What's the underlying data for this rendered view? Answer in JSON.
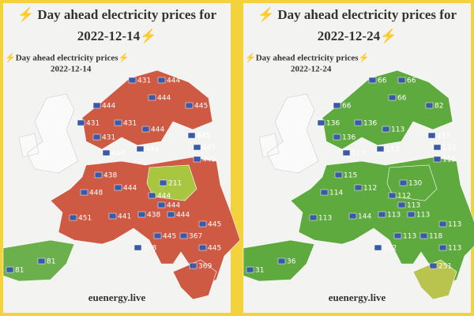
{
  "panels": [
    {
      "title": [
        "⚡ Day ahead electricity prices for",
        "2022-12-14⚡"
      ],
      "subtitle": [
        "⚡Day ahead electricity prices⚡",
        "2022-12-14"
      ],
      "prices": [
        "431",
        "444",
        "444",
        "444",
        "445",
        "431",
        "431",
        "444",
        "445",
        "431",
        "445",
        "444",
        "444",
        "445",
        "438",
        "211",
        "448",
        "444",
        "444",
        "444",
        "451",
        "441",
        "438",
        "444",
        "445",
        "445",
        "367",
        "378",
        "445",
        "81",
        "81",
        "369"
      ],
      "footer": "euenergy.live"
    },
    {
      "title": [
        "⚡ Day ahead electricity prices for",
        "2022-12-24⚡"
      ],
      "subtitle": [
        "⚡Day ahead electricity prices⚡",
        "2022-12-24"
      ],
      "prices": [
        "66",
        "66",
        "66",
        "66",
        "82",
        "136",
        "136",
        "113",
        "113",
        "136",
        "113",
        "113",
        "113",
        "115",
        "115",
        "130",
        "114",
        "112",
        "112",
        "113",
        "113",
        "144",
        "113",
        "113",
        "113",
        "113",
        "118",
        "112",
        "113",
        "31",
        "36",
        "251"
      ],
      "footer": "euenergy.live"
    }
  ]
}
